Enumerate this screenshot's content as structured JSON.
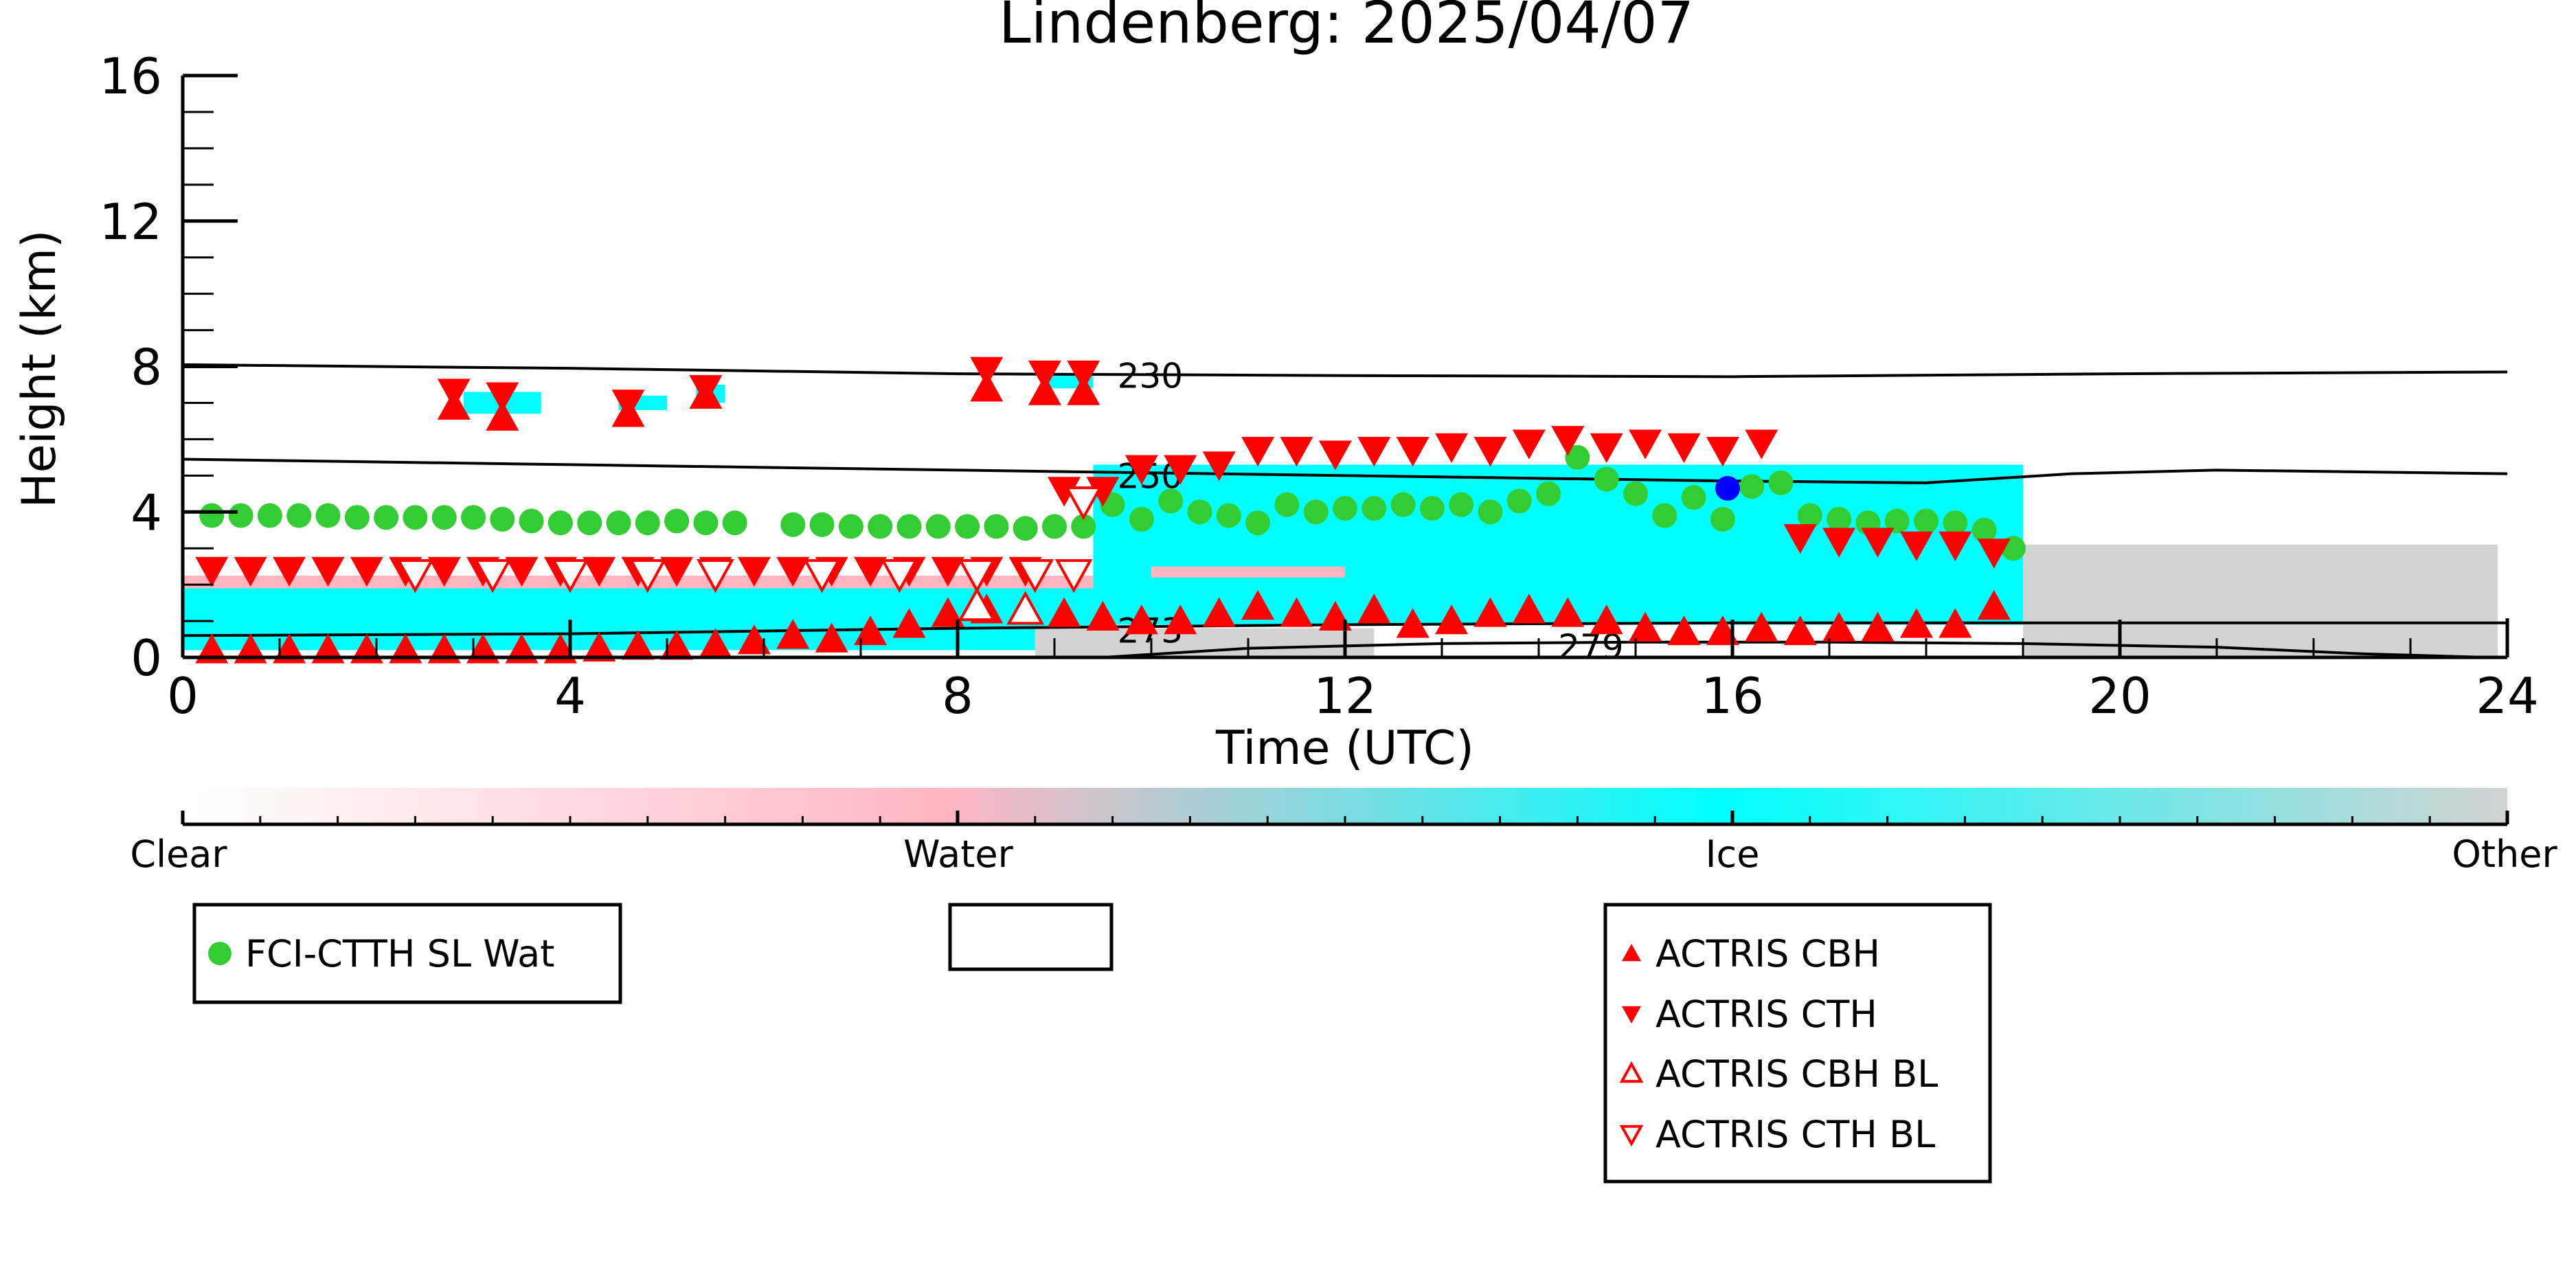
{
  "chart_data": {
    "type": "scatter",
    "title": "Lindenberg: 2025/04/07",
    "xlabel": "Time (UTC)",
    "ylabel": "Height (km)",
    "xlim": [
      0,
      24
    ],
    "ylim": [
      0,
      16
    ],
    "xticks": [
      "0",
      "4",
      "8",
      "12",
      "16",
      "20",
      "24"
    ],
    "yticks": [
      "0",
      "4",
      "8",
      "12",
      "16"
    ],
    "isotherms": [
      {
        "label": "230",
        "x": [
          0,
          4,
          8,
          12,
          16,
          20,
          24
        ],
        "y": [
          8.05,
          7.95,
          7.8,
          7.75,
          7.72,
          7.8,
          7.85
        ]
      },
      {
        "label": "250",
        "x": [
          0,
          4,
          8,
          12,
          16,
          18,
          19.5,
          21,
          24
        ],
        "y": [
          5.45,
          5.3,
          5.15,
          5.0,
          4.85,
          4.8,
          5.05,
          5.15,
          5.05
        ]
      },
      {
        "label": "273",
        "x": [
          0,
          4,
          8,
          12,
          16,
          20,
          24
        ],
        "y": [
          0.6,
          0.65,
          0.8,
          0.9,
          0.95,
          0.95,
          0.95
        ]
      },
      {
        "label": "279",
        "x": [
          9.5,
          11,
          13,
          15,
          17,
          19,
          21,
          22.5,
          23.8
        ],
        "y": [
          0.0,
          0.25,
          0.38,
          0.42,
          0.42,
          0.38,
          0.28,
          0.1,
          0.0
        ]
      }
    ],
    "isotherm_label_pos": [
      {
        "label": "230",
        "x": 9.65,
        "y": 7.75
      },
      {
        "label": "250",
        "x": 9.65,
        "y": 5.0
      },
      {
        "label": "273",
        "x": 9.65,
        "y": 0.75
      },
      {
        "label": "279",
        "x": 14.2,
        "y": 0.3
      }
    ],
    "classification_colorbar": {
      "labels": [
        "Clear",
        "Water",
        "Ice",
        "Other"
      ],
      "colors": [
        "#ffffff",
        "#ffb6c1",
        "#00ffff",
        "#d3d3d3"
      ]
    },
    "legends": [
      {
        "items": [
          {
            "label": "FCI-CTTH SL Wat",
            "marker": "circle",
            "color": "#33cc33"
          }
        ]
      },
      {
        "items": []
      },
      {
        "items": [
          {
            "label": "ACTRIS CBH",
            "marker": "triangle-up",
            "color": "#ff0000",
            "filled": true
          },
          {
            "label": "ACTRIS CTH",
            "marker": "triangle-down",
            "color": "#ff0000",
            "filled": true
          },
          {
            "label": "ACTRIS CBH BL",
            "marker": "triangle-up",
            "color": "#ff0000",
            "filled": false
          },
          {
            "label": "ACTRIS CTH BL",
            "marker": "triangle-down",
            "color": "#ff0000",
            "filled": false
          }
        ]
      }
    ],
    "series": [
      {
        "name": "FCI-CTTH SL Wat",
        "marker": "circle",
        "color": "#33cc33",
        "x": [
          0.3,
          0.6,
          0.9,
          1.2,
          1.5,
          1.8,
          2.1,
          2.4,
          2.7,
          3.0,
          3.3,
          3.6,
          3.9,
          4.2,
          4.5,
          4.8,
          5.1,
          5.4,
          5.7,
          6.3,
          6.6,
          6.9,
          7.2,
          7.5,
          7.8,
          8.1,
          8.4,
          8.7,
          9.0,
          9.3,
          9.6,
          9.9,
          10.2,
          10.5,
          10.8,
          11.1,
          11.4,
          11.7,
          12.0,
          12.3,
          12.6,
          12.9,
          13.2,
          13.5,
          13.8,
          14.1,
          14.4,
          14.7,
          15.0,
          15.3,
          15.6,
          15.9,
          16.2,
          16.5,
          16.8,
          17.1,
          17.4,
          17.7,
          18.0,
          18.3,
          18.6,
          18.9
        ],
        "y": [
          3.9,
          3.9,
          3.9,
          3.9,
          3.9,
          3.85,
          3.85,
          3.85,
          3.85,
          3.85,
          3.8,
          3.75,
          3.7,
          3.7,
          3.7,
          3.7,
          3.75,
          3.7,
          3.7,
          3.65,
          3.65,
          3.6,
          3.6,
          3.6,
          3.6,
          3.6,
          3.6,
          3.55,
          3.6,
          3.6,
          4.2,
          3.8,
          4.3,
          4.0,
          3.9,
          3.7,
          4.2,
          4.0,
          4.1,
          4.1,
          4.2,
          4.1,
          4.2,
          4.0,
          4.3,
          4.5,
          5.5,
          4.9,
          4.5,
          3.9,
          4.4,
          3.8,
          4.7,
          4.8,
          3.9,
          3.8,
          3.7,
          3.75,
          3.75,
          3.7,
          3.5,
          3.0
        ]
      },
      {
        "name": "",
        "marker": "circle",
        "color": "#0000ff",
        "x": [
          15.95
        ],
        "y": [
          4.65
        ]
      },
      {
        "name": "ACTRIS CBH",
        "marker": "triangle-up",
        "color": "#ff0000",
        "filled": true,
        "x": [
          0.3,
          0.7,
          1.1,
          1.5,
          1.9,
          2.3,
          2.7,
          3.1,
          3.5,
          3.9,
          4.3,
          4.7,
          5.1,
          5.5,
          5.9,
          6.3,
          6.7,
          7.1,
          7.5,
          7.9,
          8.3,
          8.7,
          9.1,
          9.5,
          9.9,
          10.3,
          10.7,
          11.1,
          11.5,
          11.9,
          12.3,
          12.7,
          13.1,
          13.5,
          13.9,
          14.3,
          14.7,
          15.1,
          15.5,
          15.9,
          16.3,
          16.7,
          17.1,
          17.5,
          17.9,
          18.3,
          18.7,
          2.8,
          3.3,
          4.6,
          5.4,
          8.3,
          8.9,
          9.3
        ],
        "y": [
          0.2,
          0.2,
          0.2,
          0.2,
          0.2,
          0.2,
          0.2,
          0.2,
          0.2,
          0.2,
          0.25,
          0.3,
          0.3,
          0.35,
          0.45,
          0.6,
          0.5,
          0.7,
          0.9,
          1.2,
          1.3,
          1.3,
          1.2,
          1.1,
          1.0,
          1.0,
          1.2,
          1.4,
          1.2,
          1.1,
          1.3,
          0.9,
          1.0,
          1.2,
          1.3,
          1.2,
          1.0,
          0.8,
          0.7,
          0.7,
          0.8,
          0.7,
          0.8,
          0.8,
          0.9,
          0.9,
          1.4,
          6.9,
          6.6,
          6.7,
          7.2,
          7.4,
          7.3,
          7.3
        ]
      },
      {
        "name": "ACTRIS CTH",
        "marker": "triangle-down",
        "color": "#ff0000",
        "filled": true,
        "x": [
          0.3,
          0.7,
          1.1,
          1.5,
          1.9,
          2.3,
          2.7,
          3.1,
          3.5,
          3.9,
          4.3,
          4.7,
          5.1,
          5.5,
          5.9,
          6.3,
          6.7,
          7.1,
          7.5,
          7.9,
          8.3,
          8.7,
          9.1,
          9.5,
          9.9,
          10.3,
          10.7,
          11.1,
          11.5,
          11.9,
          12.3,
          12.7,
          13.1,
          13.5,
          13.9,
          14.3,
          14.7,
          15.1,
          15.5,
          15.9,
          16.3,
          16.7,
          17.1,
          17.5,
          17.9,
          18.3,
          18.7,
          2.8,
          3.3,
          4.6,
          5.4,
          8.3,
          8.9,
          9.3
        ],
        "y": [
          2.4,
          2.4,
          2.4,
          2.4,
          2.4,
          2.4,
          2.4,
          2.4,
          2.4,
          2.4,
          2.4,
          2.4,
          2.4,
          2.4,
          2.4,
          2.4,
          2.4,
          2.4,
          2.4,
          2.4,
          2.4,
          2.4,
          4.6,
          4.6,
          5.2,
          5.2,
          5.3,
          5.7,
          5.7,
          5.6,
          5.7,
          5.7,
          5.8,
          5.7,
          5.9,
          6.0,
          5.8,
          5.9,
          5.8,
          5.7,
          5.9,
          3.3,
          3.2,
          3.2,
          3.1,
          3.1,
          2.9,
          7.3,
          7.2,
          7.0,
          7.4,
          7.9,
          7.8,
          7.8
        ]
      },
      {
        "name": "ACTRIS CBH BL",
        "marker": "triangle-up",
        "color": "#ff0000",
        "filled": false,
        "x": [
          8.2,
          8.7
        ],
        "y": [
          1.4,
          1.3
        ]
      },
      {
        "name": "ACTRIS CTH BL",
        "marker": "triangle-down",
        "color": "#ff0000",
        "filled": false,
        "x": [
          2.4,
          3.2,
          4.0,
          4.8,
          5.5,
          6.6,
          7.4,
          8.2,
          8.8,
          9.2,
          9.3
        ],
        "y": [
          2.3,
          2.3,
          2.3,
          2.3,
          2.3,
          2.3,
          2.3,
          2.3,
          2.3,
          2.3,
          4.3
        ]
      }
    ]
  }
}
